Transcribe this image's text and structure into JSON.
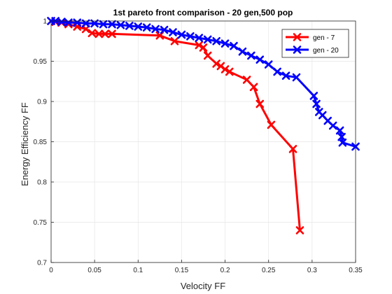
{
  "chart_data": {
    "type": "line",
    "title": "1st pareto front comparison - 20 gen,500 pop",
    "xlabel": "Velocity FF",
    "ylabel": "Energy Efficiency FF",
    "xlim": [
      0,
      0.35
    ],
    "ylim": [
      0.7,
      1.0
    ],
    "xticks": [
      0,
      0.05,
      0.1,
      0.15,
      0.2,
      0.25,
      0.3,
      0.35
    ],
    "yticks": [
      0.7,
      0.75,
      0.8,
      0.85,
      0.9,
      0.95,
      1
    ],
    "xtick_labels": [
      "0",
      "0.05",
      "0.1",
      "0.15",
      "0.2",
      "0.25",
      "0.3",
      "0.35"
    ],
    "ytick_labels": [
      "0.7",
      "0.75",
      "0.8",
      "0.85",
      "0.9",
      "0.95",
      "1"
    ],
    "grid": true,
    "legend_position": "top-right",
    "series": [
      {
        "name": "gen - 7",
        "color": "#ff0000",
        "marker": "x",
        "points": [
          [
            0.0,
            1.0
          ],
          [
            0.005,
            0.999
          ],
          [
            0.012,
            0.998
          ],
          [
            0.02,
            0.996
          ],
          [
            0.03,
            0.993
          ],
          [
            0.04,
            0.99
          ],
          [
            0.047,
            0.985
          ],
          [
            0.055,
            0.984
          ],
          [
            0.062,
            0.984
          ],
          [
            0.07,
            0.984
          ],
          [
            0.125,
            0.982
          ],
          [
            0.142,
            0.975
          ],
          [
            0.17,
            0.97
          ],
          [
            0.175,
            0.967
          ],
          [
            0.18,
            0.957
          ],
          [
            0.19,
            0.947
          ],
          [
            0.195,
            0.944
          ],
          [
            0.2,
            0.94
          ],
          [
            0.205,
            0.937
          ],
          [
            0.225,
            0.927
          ],
          [
            0.233,
            0.918
          ],
          [
            0.24,
            0.897
          ],
          [
            0.253,
            0.871
          ],
          [
            0.278,
            0.841
          ],
          [
            0.286,
            0.74
          ]
        ]
      },
      {
        "name": "gen - 20",
        "color": "#0000ff",
        "marker": "x",
        "points": [
          [
            0.0,
            1.0
          ],
          [
            0.005,
            1.0
          ],
          [
            0.012,
            0.999
          ],
          [
            0.02,
            0.998
          ],
          [
            0.03,
            0.998
          ],
          [
            0.04,
            0.997
          ],
          [
            0.05,
            0.997
          ],
          [
            0.06,
            0.996
          ],
          [
            0.07,
            0.996
          ],
          [
            0.08,
            0.995
          ],
          [
            0.09,
            0.994
          ],
          [
            0.1,
            0.993
          ],
          [
            0.11,
            0.992
          ],
          [
            0.12,
            0.99
          ],
          [
            0.13,
            0.989
          ],
          [
            0.14,
            0.986
          ],
          [
            0.15,
            0.983
          ],
          [
            0.16,
            0.981
          ],
          [
            0.17,
            0.979
          ],
          [
            0.18,
            0.977
          ],
          [
            0.19,
            0.975
          ],
          [
            0.2,
            0.972
          ],
          [
            0.21,
            0.969
          ],
          [
            0.22,
            0.962
          ],
          [
            0.23,
            0.957
          ],
          [
            0.24,
            0.952
          ],
          [
            0.25,
            0.946
          ],
          [
            0.26,
            0.937
          ],
          [
            0.27,
            0.932
          ],
          [
            0.282,
            0.93
          ],
          [
            0.302,
            0.907
          ],
          [
            0.305,
            0.897
          ],
          [
            0.308,
            0.887
          ],
          [
            0.312,
            0.883
          ],
          [
            0.318,
            0.876
          ],
          [
            0.324,
            0.87
          ],
          [
            0.332,
            0.864
          ],
          [
            0.334,
            0.856
          ],
          [
            0.335,
            0.849
          ],
          [
            0.35,
            0.844
          ]
        ]
      }
    ]
  }
}
